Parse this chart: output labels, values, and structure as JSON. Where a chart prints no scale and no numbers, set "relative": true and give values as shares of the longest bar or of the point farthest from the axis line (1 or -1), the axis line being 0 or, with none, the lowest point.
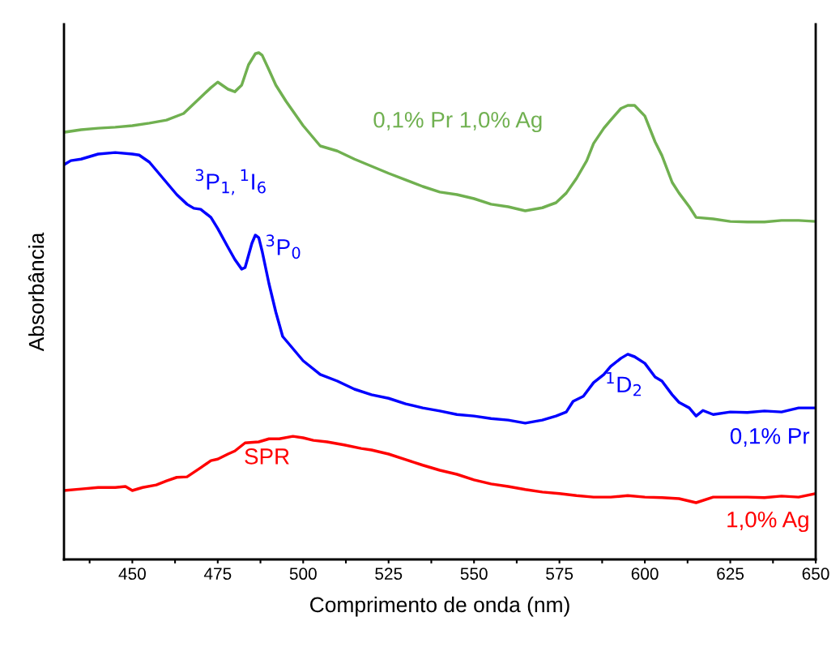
{
  "chart_data": {
    "type": "line",
    "relative": true,
    "xlabel": "Comprimento de onda (nm)",
    "ylabel": "Absorbância",
    "xlim": [
      430,
      650
    ],
    "xticks": [
      {
        "value": 437.5,
        "label": null
      },
      450,
      {
        "value": 462.5,
        "label": null
      },
      475,
      {
        "value": 487.5,
        "label": null
      },
      500,
      {
        "value": 512.5,
        "label": null
      },
      525,
      {
        "value": 537.5,
        "label": null
      },
      550,
      {
        "value": 562.5,
        "label": null
      },
      575,
      {
        "value": 587.5,
        "label": null
      },
      600,
      {
        "value": 612.5,
        "label": null
      },
      625,
      {
        "value": 637.5,
        "label": null
      },
      650
    ],
    "grid": false,
    "legend": false,
    "marker": "none",
    "line_style": "solid",
    "series": [
      {
        "name": "0,1% Pr 1,0% Ag",
        "color": "#70b050",
        "x": [
          430,
          435,
          440,
          445,
          450,
          455,
          460,
          465,
          470,
          473,
          475,
          478,
          480,
          482,
          484,
          486,
          487,
          488,
          490,
          492,
          495,
          500,
          505,
          510,
          515,
          520,
          525,
          530,
          535,
          540,
          545,
          550,
          555,
          560,
          565,
          570,
          574,
          577,
          580,
          583,
          585,
          588,
          590,
          593,
          595,
          597,
          600,
          603,
          605,
          608,
          610,
          613,
          615,
          620,
          625,
          630,
          635,
          640,
          645,
          650
        ],
        "values": [
          0.843,
          0.848,
          0.851,
          0.853,
          0.856,
          0.861,
          0.867,
          0.88,
          0.912,
          0.931,
          0.942,
          0.928,
          0.923,
          0.936,
          0.976,
          0.998,
          1.0,
          0.995,
          0.966,
          0.936,
          0.904,
          0.856,
          0.816,
          0.806,
          0.79,
          0.776,
          0.762,
          0.749,
          0.736,
          0.725,
          0.72,
          0.712,
          0.701,
          0.696,
          0.688,
          0.694,
          0.704,
          0.723,
          0.752,
          0.787,
          0.821,
          0.851,
          0.867,
          0.89,
          0.896,
          0.896,
          0.875,
          0.824,
          0.797,
          0.744,
          0.723,
          0.696,
          0.675,
          0.672,
          0.667,
          0.666,
          0.666,
          0.669,
          0.669,
          0.667
        ]
      },
      {
        "name": "0,1% Pr",
        "color": "#0000ff",
        "x": [
          430,
          432,
          435,
          440,
          445,
          450,
          452,
          455,
          458,
          460,
          463,
          466,
          468,
          470,
          473,
          475,
          478,
          480,
          482,
          483,
          485,
          486,
          487,
          488,
          490,
          492,
          494,
          496,
          500,
          505,
          510,
          515,
          520,
          525,
          530,
          535,
          540,
          545,
          550,
          555,
          560,
          565,
          570,
          574,
          577,
          579,
          582,
          585,
          588,
          590,
          593,
          595,
          597,
          600,
          603,
          605,
          608,
          610,
          613,
          615,
          617,
          620,
          625,
          630,
          635,
          640,
          645,
          650
        ],
        "values": [
          0.779,
          0.787,
          0.79,
          0.8,
          0.803,
          0.8,
          0.798,
          0.784,
          0.76,
          0.744,
          0.72,
          0.701,
          0.693,
          0.691,
          0.675,
          0.653,
          0.616,
          0.592,
          0.573,
          0.576,
          0.624,
          0.64,
          0.635,
          0.608,
          0.544,
          0.488,
          0.44,
          0.424,
          0.392,
          0.365,
          0.352,
          0.336,
          0.325,
          0.318,
          0.307,
          0.299,
          0.293,
          0.286,
          0.283,
          0.278,
          0.275,
          0.269,
          0.275,
          0.283,
          0.291,
          0.312,
          0.322,
          0.349,
          0.365,
          0.381,
          0.397,
          0.405,
          0.4,
          0.387,
          0.36,
          0.352,
          0.325,
          0.31,
          0.299,
          0.283,
          0.294,
          0.286,
          0.291,
          0.29,
          0.293,
          0.291,
          0.299,
          0.299
        ]
      },
      {
        "name": "1,0% Ag",
        "color": "#ff0000",
        "x": [
          430,
          435,
          440,
          445,
          448,
          450,
          453,
          457,
          460,
          463,
          466,
          470,
          473,
          475,
          478,
          480,
          483,
          487,
          490,
          493,
          497,
          500,
          503,
          507,
          512,
          517,
          520,
          525,
          530,
          535,
          540,
          545,
          550,
          555,
          560,
          565,
          570,
          575,
          580,
          585,
          590,
          595,
          600,
          605,
          610,
          615,
          620,
          625,
          630,
          635,
          640,
          645,
          650
        ],
        "values": [
          0.136,
          0.139,
          0.142,
          0.142,
          0.144,
          0.136,
          0.142,
          0.147,
          0.155,
          0.162,
          0.163,
          0.181,
          0.195,
          0.198,
          0.208,
          0.214,
          0.23,
          0.232,
          0.238,
          0.238,
          0.243,
          0.24,
          0.235,
          0.232,
          0.226,
          0.219,
          0.216,
          0.208,
          0.197,
          0.186,
          0.176,
          0.168,
          0.157,
          0.149,
          0.144,
          0.138,
          0.133,
          0.13,
          0.126,
          0.123,
          0.123,
          0.126,
          0.123,
          0.122,
          0.12,
          0.112,
          0.123,
          0.123,
          0.123,
          0.122,
          0.125,
          0.123,
          0.13
        ]
      }
    ],
    "annotations": [
      "$^{3}$P$_{1,}$$^{1}$I$_{6}$",
      "$^{3}$P$_{0}$",
      "$^{1}$D$_{2}$",
      "SPR"
    ]
  }
}
